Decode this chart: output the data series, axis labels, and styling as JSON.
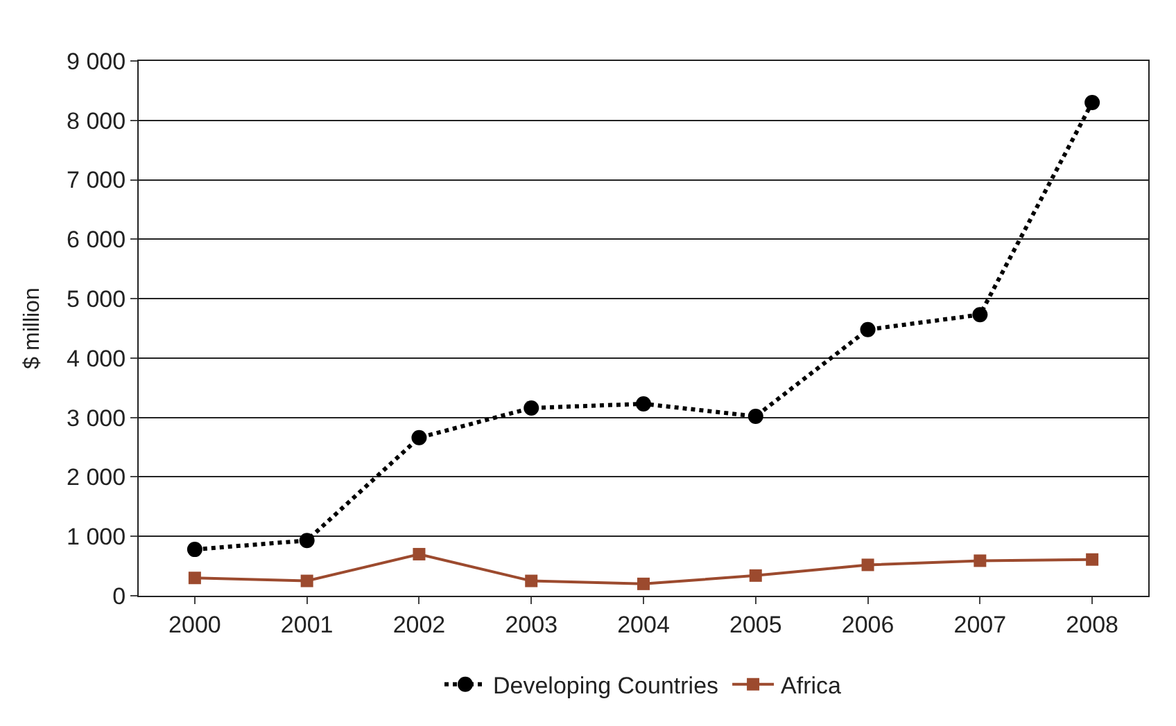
{
  "chart_data": {
    "type": "line",
    "ylabel": "$ million",
    "categories": [
      "2000",
      "2001",
      "2002",
      "2003",
      "2004",
      "2005",
      "2006",
      "2007",
      "2008"
    ],
    "series": [
      {
        "name": "Developing Countries",
        "color": "#000000",
        "marker": "circle",
        "line_style": "dotted",
        "values": [
          780,
          930,
          2660,
          3160,
          3230,
          3020,
          4480,
          4730,
          8300
        ]
      },
      {
        "name": "Africa",
        "color": "#9c4a2e",
        "marker": "square",
        "line_style": "solid",
        "values": [
          300,
          250,
          700,
          250,
          200,
          340,
          520,
          590,
          610
        ]
      }
    ],
    "ylim": [
      0,
      9000
    ],
    "yticks": [
      0,
      {
        "value": 1000,
        "label": "1 000"
      },
      {
        "value": 2000,
        "label": "2 000"
      },
      {
        "value": 3000,
        "label": "3 000"
      },
      {
        "value": 4000,
        "label": "4 000"
      },
      {
        "value": 5000,
        "label": "5 000"
      },
      {
        "value": 6000,
        "label": "6 000"
      },
      {
        "value": 7000,
        "label": "7 000"
      },
      {
        "value": 8000,
        "label": "8 000"
      },
      {
        "value": 9000,
        "label": "9 000"
      }
    ],
    "grid": "y",
    "legend": "bottom"
  }
}
